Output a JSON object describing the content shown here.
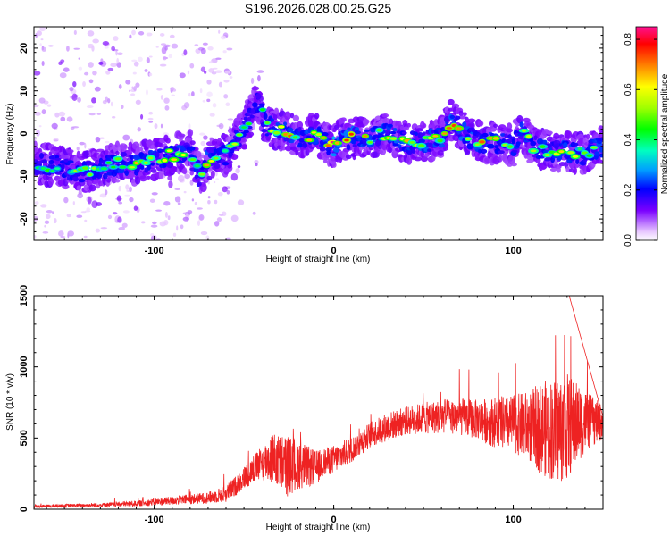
{
  "title": "S196.2026.028.00.25.G25",
  "chart_data": [
    {
      "type": "heatmap",
      "name": "spectrogram",
      "xlabel": "Height of straight line (km)",
      "ylabel": "Frequency (Hz)",
      "xlim": [
        -167,
        150
      ],
      "ylim": [
        -25,
        25
      ],
      "xticks": [
        -100,
        0,
        100
      ],
      "xtick_labels": [
        "-100",
        "0",
        "100"
      ],
      "yticks": [
        -20,
        -10,
        0,
        10,
        20
      ],
      "ytick_labels": [
        "-20",
        "-10",
        "0",
        "10",
        "20"
      ],
      "colorbar": {
        "label": "Normalized spectral amplitude",
        "range": [
          0,
          0.85
        ],
        "ticks": [
          0,
          0.2,
          0.4,
          0.6,
          0.8
        ],
        "tick_labels": [
          "0.0",
          "0.2",
          "0.4",
          "0.6",
          "0.8"
        ]
      },
      "ridge": {
        "x": [
          -165,
          -150,
          -140,
          -130,
          -120,
          -110,
          -100,
          -90,
          -80,
          -75,
          -70,
          -60,
          -55,
          -50,
          -45,
          -42,
          -38,
          -30,
          -20,
          -10,
          -5,
          0,
          5,
          10,
          20,
          30,
          40,
          50,
          60,
          65,
          70,
          80,
          90,
          100,
          105,
          110,
          120,
          130,
          140,
          148
        ],
        "freq": [
          -7,
          -8,
          -9,
          -8,
          -7,
          -7,
          -6,
          -5,
          -4,
          -10,
          -6,
          -5,
          -2,
          1,
          5,
          8,
          2,
          1,
          -1,
          0,
          -2,
          -3,
          -1,
          -1,
          -1,
          0,
          -2,
          -2,
          -1,
          3,
          1,
          -2,
          -2,
          -3,
          1,
          -3,
          -4,
          -4,
          -5,
          -3
        ],
        "amplitude": [
          0.2,
          0.3,
          0.35,
          0.3,
          0.35,
          0.45,
          0.35,
          0.45,
          0.4,
          0.3,
          0.5,
          0.3,
          0.35,
          0.35,
          0.25,
          0.25,
          0.35,
          0.55,
          0.5,
          0.45,
          0.5,
          0.85,
          0.6,
          0.55,
          0.5,
          0.5,
          0.5,
          0.5,
          0.45,
          0.6,
          0.5,
          0.55,
          0.45,
          0.35,
          0.45,
          0.35,
          0.4,
          0.45,
          0.35,
          0.45
        ]
      }
    },
    {
      "type": "line",
      "name": "snr",
      "xlabel": "Height of straight line (km)",
      "ylabel": "SNR (10 * v/v)",
      "xlim": [
        -167,
        150
      ],
      "ylim": [
        0,
        1500
      ],
      "xticks": [
        -100,
        0,
        100
      ],
      "xtick_labels": [
        "-100",
        "0",
        "100"
      ],
      "yticks": [
        0,
        500,
        1000,
        1500
      ],
      "ytick_labels": [
        "0",
        "500",
        "1000",
        "1500"
      ],
      "color": "#ee2222",
      "envelope": {
        "x": [
          -167,
          -150,
          -130,
          -110,
          -100,
          -90,
          -80,
          -70,
          -60,
          -55,
          -50,
          -45,
          -40,
          -35,
          -30,
          -25,
          -20,
          -15,
          -10,
          -5,
          0,
          10,
          20,
          30,
          40,
          50,
          60,
          70,
          80,
          90,
          100,
          110,
          115,
          120,
          125,
          130,
          135,
          140,
          150
        ],
        "mean": [
          20,
          25,
          30,
          40,
          50,
          60,
          70,
          80,
          110,
          160,
          220,
          280,
          320,
          360,
          330,
          300,
          320,
          300,
          290,
          330,
          350,
          420,
          520,
          580,
          620,
          640,
          650,
          650,
          630,
          610,
          600,
          580,
          570,
          560,
          560,
          580,
          600,
          620,
          610
        ],
        "spread": [
          10,
          12,
          14,
          20,
          25,
          30,
          35,
          40,
          60,
          70,
          80,
          100,
          120,
          180,
          200,
          220,
          180,
          150,
          120,
          100,
          100,
          90,
          90,
          100,
          100,
          110,
          120,
          130,
          140,
          180,
          200,
          260,
          320,
          350,
          380,
          380,
          300,
          220,
          120
        ]
      }
    }
  ]
}
